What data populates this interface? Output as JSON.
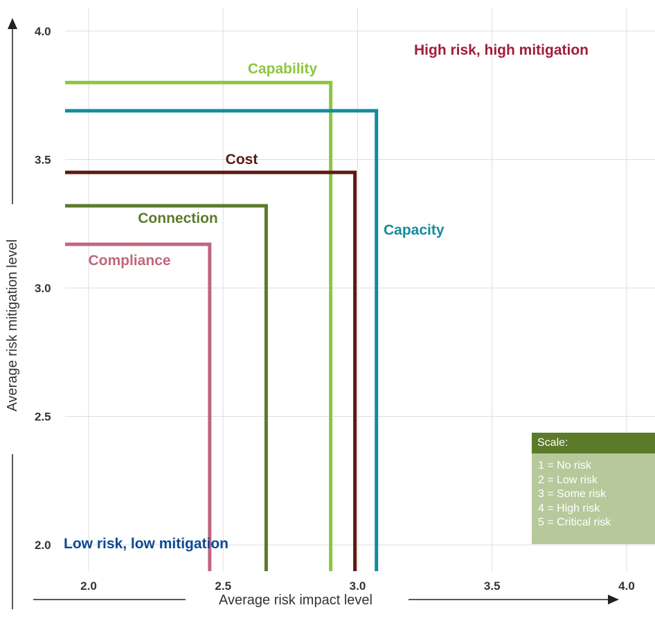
{
  "chart_data": {
    "type": "line",
    "xlabel": "Average risk impact level",
    "ylabel": "Average risk mitigation level",
    "xlim": [
      1.92,
      4.1
    ],
    "ylim": [
      1.9,
      4.05
    ],
    "x_ticks": [
      "2.0",
      "2.5",
      "3.0",
      "3.5",
      "4.0"
    ],
    "y_ticks": [
      "4.0",
      "3.5",
      "3.0",
      "2.5",
      "2.0"
    ],
    "x_tick_values": [
      2.0,
      2.5,
      3.0,
      3.5,
      4.0
    ],
    "y_tick_values": [
      4.0,
      3.5,
      3.0,
      2.5,
      2.0
    ],
    "grid": true,
    "series": [
      {
        "name": "Capability",
        "impact": 2.9,
        "mitigation": 3.8,
        "color": "#8cc63f"
      },
      {
        "name": "Capacity",
        "impact": 3.07,
        "mitigation": 3.69,
        "color": "#138b9e"
      },
      {
        "name": "Cost",
        "impact": 2.99,
        "mitigation": 3.45,
        "color": "#5c1a10"
      },
      {
        "name": "Connection",
        "impact": 2.66,
        "mitigation": 3.32,
        "color": "#5b7b2a"
      },
      {
        "name": "Compliance",
        "impact": 2.45,
        "mitigation": 3.17,
        "color": "#c0677e"
      }
    ],
    "annotations": {
      "high": {
        "text": "High risk, high mitigation",
        "color": "#a01c3c"
      },
      "low": {
        "text": "Low risk, low mitigation",
        "color": "#0b4a93"
      }
    }
  },
  "scale": {
    "title": "Scale:",
    "items": [
      "1 = No risk",
      "2 = Low risk",
      "3 = Some risk",
      "4 = High risk",
      "5 = Critical risk"
    ],
    "header_color": "#5b7b2a",
    "box_color": "#b7c99b"
  }
}
